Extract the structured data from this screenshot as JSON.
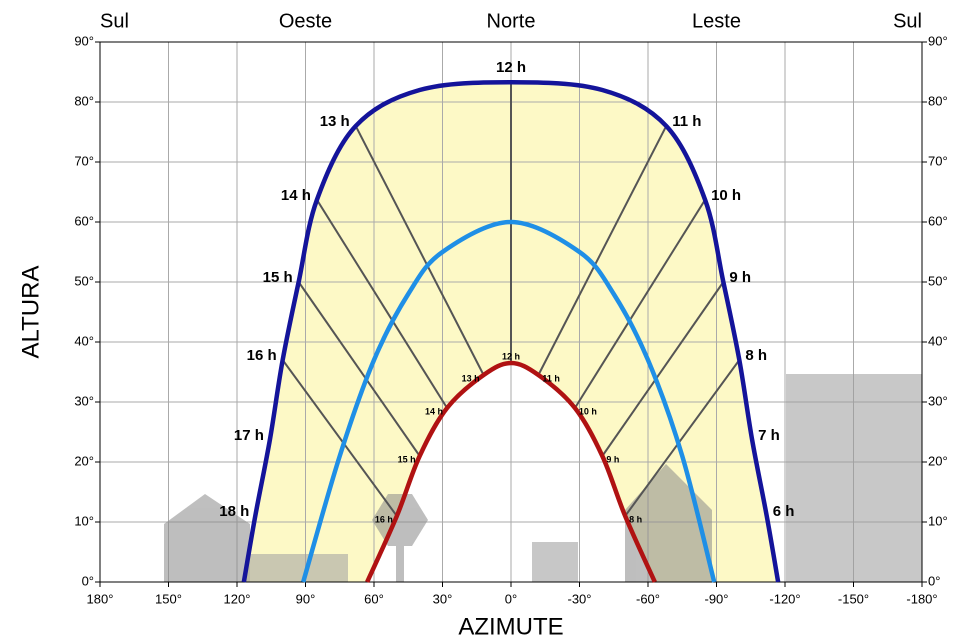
{
  "chart_data": {
    "type": "sunpath",
    "xlabel": "AZIMUTE",
    "ylabel": "ALTURA",
    "xlim": [
      180,
      -180
    ],
    "ylim": [
      0,
      90
    ],
    "xticks": [
      {
        "value": 180,
        "label": "180°"
      },
      {
        "value": 150,
        "label": "150°"
      },
      {
        "value": 120,
        "label": "120°"
      },
      {
        "value": 90,
        "label": "90°"
      },
      {
        "value": 60,
        "label": "60°"
      },
      {
        "value": 30,
        "label": "30°"
      },
      {
        "value": 0,
        "label": "0°"
      },
      {
        "value": -30,
        "label": "-30°"
      },
      {
        "value": -60,
        "label": "-60°"
      },
      {
        "value": -90,
        "label": "-90°"
      },
      {
        "value": -120,
        "label": "-120°"
      },
      {
        "value": -150,
        "label": "-150°"
      },
      {
        "value": -180,
        "label": "-180°"
      }
    ],
    "yticks": [
      {
        "value": 0,
        "label": "0°"
      },
      {
        "value": 10,
        "label": "10°"
      },
      {
        "value": 20,
        "label": "20°"
      },
      {
        "value": 30,
        "label": "30°"
      },
      {
        "value": 40,
        "label": "40°"
      },
      {
        "value": 50,
        "label": "50°"
      },
      {
        "value": 60,
        "label": "60°"
      },
      {
        "value": 70,
        "label": "70°"
      },
      {
        "value": 80,
        "label": "80°"
      },
      {
        "value": 90,
        "label": "90°"
      }
    ],
    "top_ticks": [
      {
        "value": 180,
        "label": "Sul"
      },
      {
        "value": 90,
        "label": "Oeste"
      },
      {
        "value": 0,
        "label": "Norte"
      },
      {
        "value": -90,
        "label": "Leste"
      },
      {
        "value": -180,
        "label": "Sul"
      }
    ],
    "grid": true,
    "series": [
      {
        "color": "#14149a",
        "x": [
          117,
          112,
          105.6,
          100,
          93,
          85,
          68,
          40,
          0,
          -40,
          -68,
          -85,
          -93,
          -100,
          -105.6,
          -112,
          -117
        ],
        "values": [
          0,
          11,
          23.7,
          37,
          50,
          63.7,
          76,
          82,
          83.3,
          82,
          76,
          63.7,
          50,
          37,
          23.7,
          11,
          0
        ],
        "point_labels": [
          null,
          "18 h",
          "17 h",
          "16 h",
          "15 h",
          "14 h",
          "13 h",
          null,
          "12 h",
          null,
          "11 h",
          "10 h",
          "9 h",
          "8 h",
          "7 h",
          "6 h",
          null
        ]
      },
      {
        "color": "#1f8fe6",
        "x": [
          91,
          75,
          60,
          45,
          30,
          0,
          -30,
          -45,
          -60,
          -75,
          -89
        ],
        "values": [
          0,
          21,
          37,
          48,
          55,
          60,
          55,
          48,
          37,
          21,
          0
        ]
      },
      {
        "color": "#b01212",
        "x": [
          63,
          50,
          40,
          28,
          12,
          0,
          -12,
          -28,
          -40,
          -50,
          -63
        ],
        "values": [
          0,
          11,
          21,
          29,
          34.5,
          36.5,
          34.5,
          29,
          21,
          11,
          0
        ],
        "point_labels": [
          null,
          "16 h",
          "15 h",
          "14 h",
          "13 h",
          "12 h",
          "11 h",
          "10 h",
          "9 h",
          "8 h",
          null
        ]
      }
    ]
  }
}
